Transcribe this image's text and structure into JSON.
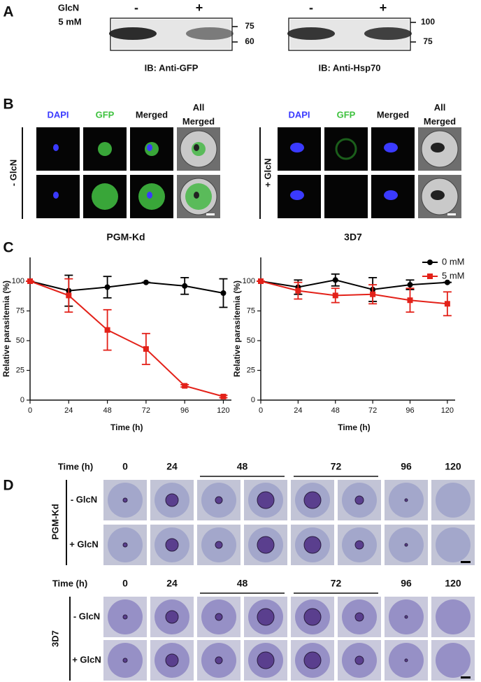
{
  "panel_a": {
    "letter": "A",
    "treatment": "GlcN",
    "concentration": "5 mM",
    "blots": [
      {
        "lanes": [
          "-",
          "+"
        ],
        "markers": [
          "75",
          "60"
        ],
        "label": "IB: Anti-GFP"
      },
      {
        "lanes": [
          "-",
          "+"
        ],
        "markers": [
          "100",
          "75"
        ],
        "label": "IB: Anti-Hsp70"
      }
    ]
  },
  "panel_b": {
    "letter": "B",
    "groups": [
      {
        "name": "- GlcN",
        "channels": [
          "DAPI",
          "GFP",
          "Merged",
          "All Merged"
        ]
      },
      {
        "name": "+ GlcN",
        "channels": [
          "DAPI",
          "GFP",
          "Merged",
          "All Merged"
        ]
      }
    ]
  },
  "panel_c": {
    "letter": "C"
  },
  "chart_data": [
    {
      "type": "line",
      "title": "PGM-Kd",
      "xlabel": "Time (h)",
      "ylabel": "Relative parasitemia (%)",
      "x": [
        0,
        24,
        48,
        72,
        96,
        120
      ],
      "xlim": [
        0,
        125
      ],
      "xticks": [
        0,
        24,
        48,
        72,
        96,
        120
      ],
      "ylim": [
        0,
        120
      ],
      "yticks": [
        0,
        25,
        50,
        75,
        100
      ],
      "series": [
        {
          "name": "0 mM",
          "color": "#000000",
          "marker": "circle",
          "values": [
            100,
            92,
            95,
            99,
            96,
            90
          ],
          "errors": [
            0,
            13,
            9,
            0,
            7,
            12
          ]
        },
        {
          "name": "5 mM",
          "color": "#e32119",
          "marker": "square",
          "values": [
            100,
            88,
            59,
            43,
            12,
            3
          ],
          "errors": [
            0,
            14,
            17,
            13,
            1,
            1
          ]
        }
      ]
    },
    {
      "type": "line",
      "title": "3D7",
      "xlabel": "Time (h)",
      "ylabel": "Relative parasitemia (%)",
      "x": [
        0,
        24,
        48,
        72,
        96,
        120
      ],
      "xlim": [
        0,
        125
      ],
      "xticks": [
        0,
        24,
        48,
        72,
        96,
        120
      ],
      "ylim": [
        0,
        120
      ],
      "yticks": [
        0,
        25,
        50,
        75,
        100
      ],
      "legend": "upper right",
      "series": [
        {
          "name": "0 mM",
          "color": "#000000",
          "marker": "circle",
          "values": [
            100,
            95,
            101,
            93,
            97,
            99
          ],
          "errors": [
            0,
            6,
            5,
            10,
            4,
            0
          ]
        },
        {
          "name": "5 mM",
          "color": "#e32119",
          "marker": "square",
          "values": [
            100,
            92,
            88,
            89,
            84,
            81
          ],
          "errors": [
            0,
            7,
            6,
            8,
            10,
            10
          ]
        }
      ]
    }
  ],
  "panel_d": {
    "letter": "D",
    "strains": [
      {
        "name": "PGM-Kd",
        "time_label": "Time (h)",
        "times": [
          "0",
          "24",
          "48",
          "72",
          "96",
          "120"
        ],
        "rows": [
          "- GlcN",
          "+ GlcN"
        ]
      },
      {
        "name": "3D7",
        "time_label": "Time (h)",
        "times": [
          "0",
          "24",
          "48",
          "72",
          "96",
          "120"
        ],
        "rows": [
          "- GlcN",
          "+ GlcN"
        ]
      }
    ]
  }
}
